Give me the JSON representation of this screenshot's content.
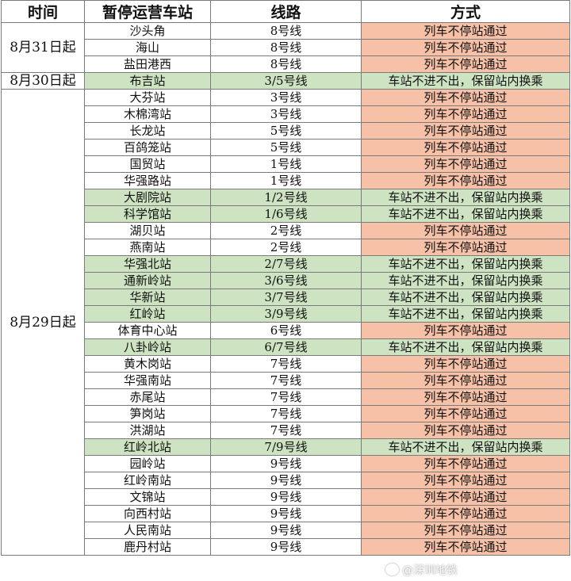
{
  "headers": {
    "time": "时间",
    "station": "暂停运营车站",
    "line": "线路",
    "mode": "方式"
  },
  "groups": [
    {
      "time": "8月31日起",
      "rows": [
        {
          "station": "沙头角",
          "line": "8号线",
          "mode": "列车不停站通过",
          "type": "skip"
        },
        {
          "station": "海山",
          "line": "8号线",
          "mode": "列车不停站通过",
          "type": "skip"
        },
        {
          "station": "盐田港西",
          "line": "8号线",
          "mode": "列车不停站通过",
          "type": "skip"
        }
      ]
    },
    {
      "time": "8月30日起",
      "rows": [
        {
          "station": "布吉站",
          "line": "3/5号线",
          "mode": "车站不进不出，保留站内换乘",
          "type": "transfer"
        }
      ]
    },
    {
      "time": "8月29日起",
      "rows": [
        {
          "station": "大芬站",
          "line": "3号线",
          "mode": "列车不停站通过",
          "type": "skip"
        },
        {
          "station": "木棉湾站",
          "line": "3号线",
          "mode": "列车不停站通过",
          "type": "skip"
        },
        {
          "station": "长龙站",
          "line": "5号线",
          "mode": "列车不停站通过",
          "type": "skip"
        },
        {
          "station": "百鸽笼站",
          "line": "5号线",
          "mode": "列车不停站通过",
          "type": "skip"
        },
        {
          "station": "国贸站",
          "line": "1号线",
          "mode": "列车不停站通过",
          "type": "skip"
        },
        {
          "station": "华强路站",
          "line": "1号线",
          "mode": "列车不停站通过",
          "type": "skip"
        },
        {
          "station": "大剧院站",
          "line": "1/2号线",
          "mode": "车站不进不出，保留站内换乘",
          "type": "transfer"
        },
        {
          "station": "科学馆站",
          "line": "1/6号线",
          "mode": "车站不进不出，保留站内换乘",
          "type": "transfer"
        },
        {
          "station": "湖贝站",
          "line": "2号线",
          "mode": "列车不停站通过",
          "type": "skip"
        },
        {
          "station": "燕南站",
          "line": "2号线",
          "mode": "列车不停站通过",
          "type": "skip"
        },
        {
          "station": "华强北站",
          "line": "2/7号线",
          "mode": "车站不进不出，保留站内换乘",
          "type": "transfer"
        },
        {
          "station": "通新岭站",
          "line": "3/6号线",
          "mode": "车站不进不出，保留站内换乘",
          "type": "transfer"
        },
        {
          "station": "华新站",
          "line": "3/7号线",
          "mode": "车站不进不出，保留站内换乘",
          "type": "transfer"
        },
        {
          "station": "红岭站",
          "line": "3/9号线",
          "mode": "车站不进不出，保留站内换乘",
          "type": "transfer"
        },
        {
          "station": "体育中心站",
          "line": "6号线",
          "mode": "列车不停站通过",
          "type": "skip"
        },
        {
          "station": "八卦岭站",
          "line": "6/7号线",
          "mode": "车站不进不出，保留站内换乘",
          "type": "transfer"
        },
        {
          "station": "黄木岗站",
          "line": "7号线",
          "mode": "列车不停站通过",
          "type": "skip"
        },
        {
          "station": "华强南站",
          "line": "7号线",
          "mode": "列车不停站通过",
          "type": "skip"
        },
        {
          "station": "赤尾站",
          "line": "7号线",
          "mode": "列车不停站通过",
          "type": "skip"
        },
        {
          "station": "笋岗站",
          "line": "7号线",
          "mode": "列车不停站通过",
          "type": "skip"
        },
        {
          "station": "洪湖站",
          "line": "7号线",
          "mode": "列车不停站通过",
          "type": "skip"
        },
        {
          "station": "红岭北站",
          "line": "7/9号线",
          "mode": "车站不进不出，保留站内换乘",
          "type": "transfer"
        },
        {
          "station": "园岭站",
          "line": "9号线",
          "mode": "列车不停站通过",
          "type": "skip"
        },
        {
          "station": "红岭南站",
          "line": "9号线",
          "mode": "列车不停站通过",
          "type": "skip"
        },
        {
          "station": "文锦站",
          "line": "9号线",
          "mode": "列车不停站通过",
          "type": "skip"
        },
        {
          "station": "向西村站",
          "line": "9号线",
          "mode": "列车不停站通过",
          "type": "skip"
        },
        {
          "station": "人民南站",
          "line": "9号线",
          "mode": "列车不停站通过",
          "type": "skip"
        },
        {
          "station": "鹿丹村站",
          "line": "9号线",
          "mode": "列车不停站通过",
          "type": "skip"
        }
      ]
    }
  ],
  "watermark": {
    "icon": "weibo-icon",
    "text": "@深圳地铁"
  },
  "colors": {
    "skip": "#f6c1a6",
    "transfer": "#cde3c2",
    "border": "#7a7a7a"
  }
}
